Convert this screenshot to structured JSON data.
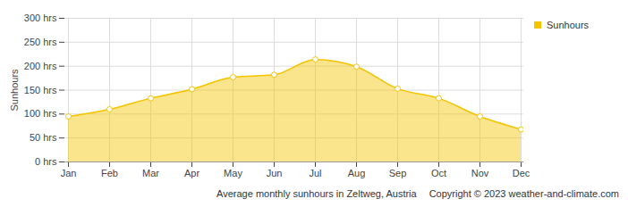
{
  "chart_data": {
    "type": "area",
    "caption": "Average monthly sunhours in Zeltweg, Austria",
    "source": "Copyright © 2023  weather-and-climate.com",
    "y_label": "Sunhours",
    "categories": [
      "Jan",
      "Feb",
      "Mar",
      "Apr",
      "May",
      "Jun",
      "Jul",
      "Aug",
      "Sep",
      "Oct",
      "Nov",
      "Dec"
    ],
    "series": [
      {
        "name": "Sunhours",
        "color": "#f5c400",
        "marker": "circle",
        "values": [
          95,
          110,
          133,
          152,
          177,
          182,
          214,
          199,
          153,
          133,
          95,
          68
        ]
      }
    ],
    "ylim": [
      0,
      300
    ],
    "yticks": [
      {
        "value": 0,
        "label": "0 hrs"
      },
      {
        "value": 50,
        "label": "50 hrs"
      },
      {
        "value": 100,
        "label": "100 hrs"
      },
      {
        "value": 150,
        "label": "150 hrs"
      },
      {
        "value": 200,
        "label": "200 hrs"
      },
      {
        "value": 250,
        "label": "250 hrs"
      },
      {
        "value": 300,
        "label": "300 hrs"
      }
    ],
    "grid": true,
    "legend": "top-right"
  }
}
